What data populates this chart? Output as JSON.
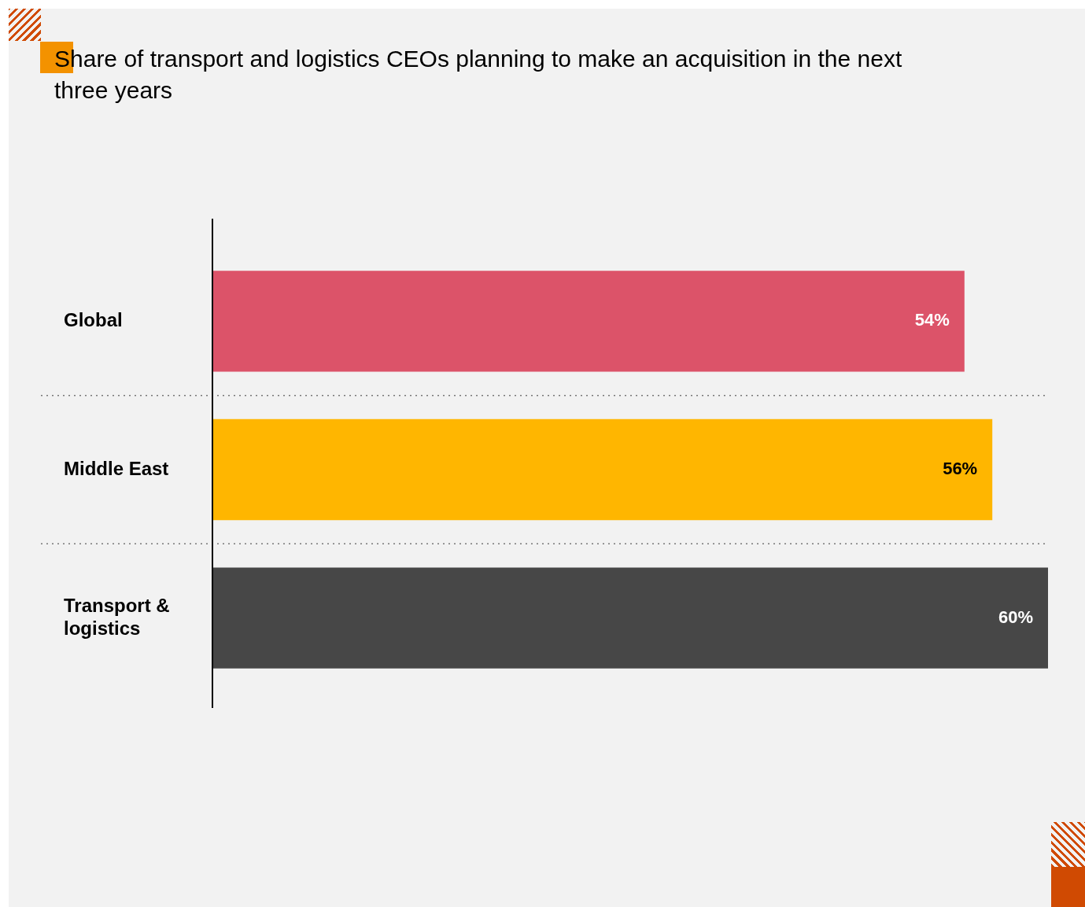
{
  "chart_data": {
    "type": "bar",
    "orientation": "horizontal",
    "title": "Share of transport and logistics CEOs planning to make an acquisition in the next three years",
    "categories": [
      "Global",
      "Middle East",
      "Transport & logistics"
    ],
    "values": [
      54,
      56,
      60
    ],
    "colors": [
      "#dc5369",
      "#ffb600",
      "#474747"
    ],
    "value_labels": [
      "54%",
      "56%",
      "60%"
    ],
    "grid": "y",
    "tick_labels": "y"
  }
}
